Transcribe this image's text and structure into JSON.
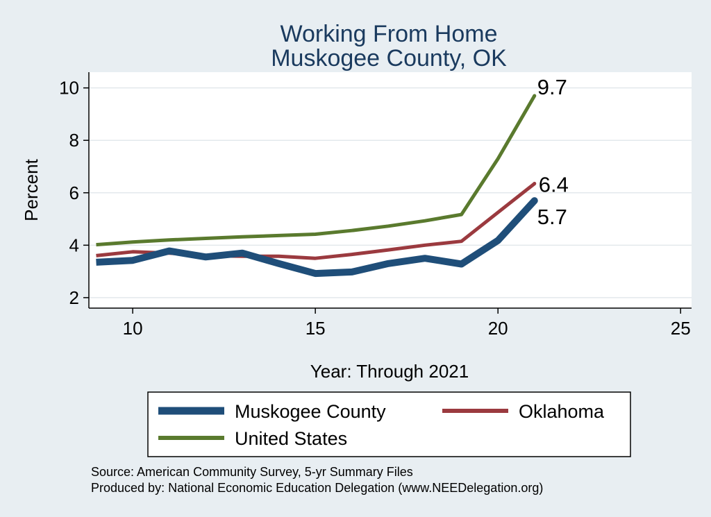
{
  "chart_data": {
    "type": "line",
    "title": [
      "Working From Home",
      "Muskogee County, OK"
    ],
    "xlabel": "Year: Through 2021",
    "ylabel": "Percent",
    "xlim": [
      8.8,
      25.3
    ],
    "ylim": [
      1.6,
      10.6
    ],
    "xticks": [
      10,
      15,
      20,
      25
    ],
    "yticks": [
      2,
      4,
      6,
      8,
      10
    ],
    "grid": true,
    "x": [
      9,
      10,
      11,
      12,
      13,
      14,
      15,
      16,
      17,
      18,
      19,
      20,
      21
    ],
    "series": [
      {
        "name": "Muskogee County",
        "color": "#1f4e79",
        "width": "thick",
        "values": [
          3.35,
          3.42,
          3.78,
          3.55,
          3.7,
          3.3,
          2.92,
          2.98,
          3.3,
          3.5,
          3.28,
          4.18,
          5.7
        ],
        "end_label": "5.7"
      },
      {
        "name": "Oklahoma",
        "color": "#9b3a3f",
        "width": "medium",
        "values": [
          3.6,
          3.75,
          3.7,
          3.6,
          3.58,
          3.58,
          3.5,
          3.65,
          3.82,
          4.0,
          4.15,
          5.25,
          6.35
        ],
        "end_label": "6.4"
      },
      {
        "name": "United States",
        "color": "#5a7a2e",
        "width": "medium",
        "values": [
          4.02,
          4.12,
          4.2,
          4.26,
          4.32,
          4.37,
          4.42,
          4.56,
          4.73,
          4.93,
          5.17,
          7.3,
          9.7
        ],
        "end_label": "9.7"
      }
    ],
    "legend": {
      "position": "bottom",
      "items": [
        "Muskogee County",
        "Oklahoma",
        "United States"
      ]
    },
    "notes": [
      "Source: American Community Survey, 5-yr Summary Files",
      "Produced by: National Economic Education Delegation (www.NEEDelegation.org)"
    ]
  }
}
